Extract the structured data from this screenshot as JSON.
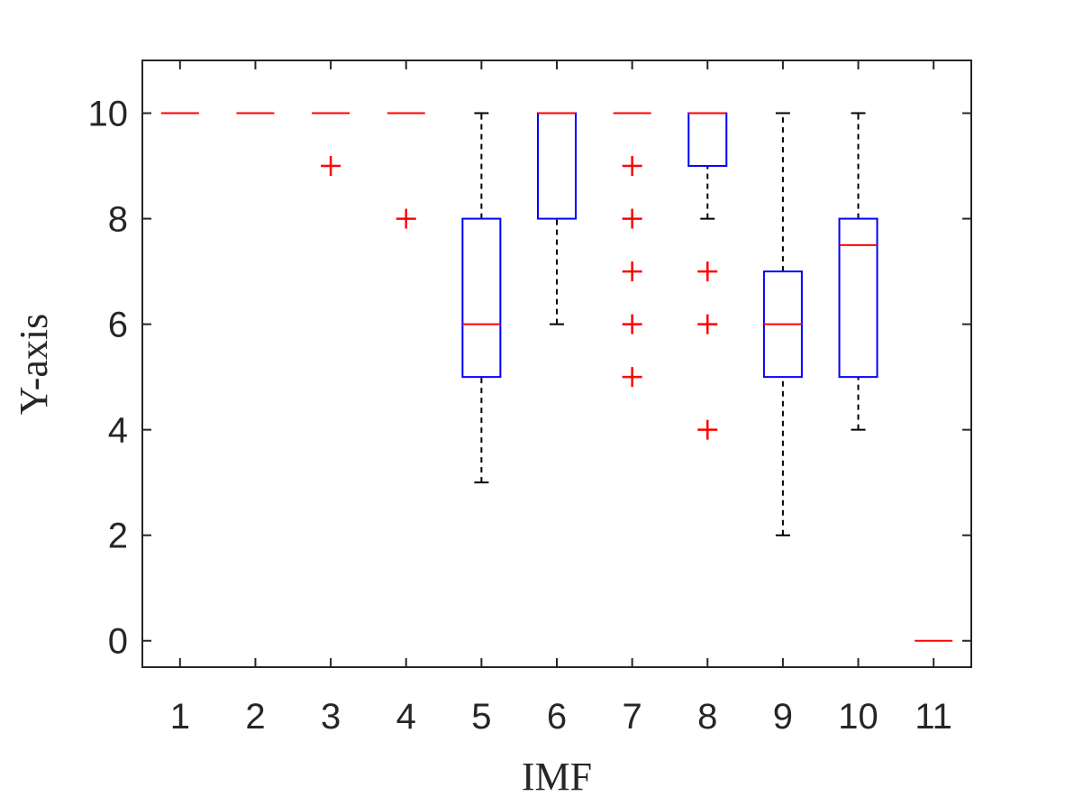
{
  "chart_data": {
    "type": "box",
    "title": "",
    "xlabel": "IMF",
    "ylabel": "Y-axis",
    "categories": [
      "1",
      "2",
      "3",
      "4",
      "5",
      "6",
      "7",
      "8",
      "9",
      "10",
      "11"
    ],
    "xlim": [
      0.5,
      11.5
    ],
    "ylim": [
      -0.5,
      11
    ],
    "yticks": [
      0,
      2,
      4,
      6,
      8,
      10
    ],
    "grid": false,
    "colors": {
      "box": "#0000ff",
      "median": "#ff0000",
      "whisker": "#000000",
      "outlier": "#ff0000",
      "axis": "#262626"
    },
    "boxes": [
      {
        "category": "1",
        "min": 10,
        "q1": 10,
        "median": 10,
        "q3": 10,
        "max": 10,
        "outliers": []
      },
      {
        "category": "2",
        "min": 10,
        "q1": 10,
        "median": 10,
        "q3": 10,
        "max": 10,
        "outliers": []
      },
      {
        "category": "3",
        "min": 10,
        "q1": 10,
        "median": 10,
        "q3": 10,
        "max": 10,
        "outliers": [
          9
        ]
      },
      {
        "category": "4",
        "min": 10,
        "q1": 10,
        "median": 10,
        "q3": 10,
        "max": 10,
        "outliers": [
          8
        ]
      },
      {
        "category": "5",
        "min": 3,
        "q1": 5,
        "median": 6,
        "q3": 8,
        "max": 10,
        "outliers": []
      },
      {
        "category": "6",
        "min": 6,
        "q1": 8,
        "median": 10,
        "q3": 10,
        "max": 10,
        "outliers": []
      },
      {
        "category": "7",
        "min": 10,
        "q1": 10,
        "median": 10,
        "q3": 10,
        "max": 10,
        "outliers": [
          9,
          8,
          7,
          6,
          5
        ]
      },
      {
        "category": "8",
        "min": 8,
        "q1": 9,
        "median": 10,
        "q3": 10,
        "max": 10,
        "outliers": [
          7,
          6,
          4
        ]
      },
      {
        "category": "9",
        "min": 2,
        "q1": 5,
        "median": 6,
        "q3": 7,
        "max": 10,
        "outliers": []
      },
      {
        "category": "10",
        "min": 4,
        "q1": 5,
        "median": 7.5,
        "q3": 8,
        "max": 10,
        "outliers": []
      },
      {
        "category": "11",
        "min": 0,
        "q1": 0,
        "median": 0,
        "q3": 0,
        "max": 0,
        "outliers": []
      }
    ]
  }
}
